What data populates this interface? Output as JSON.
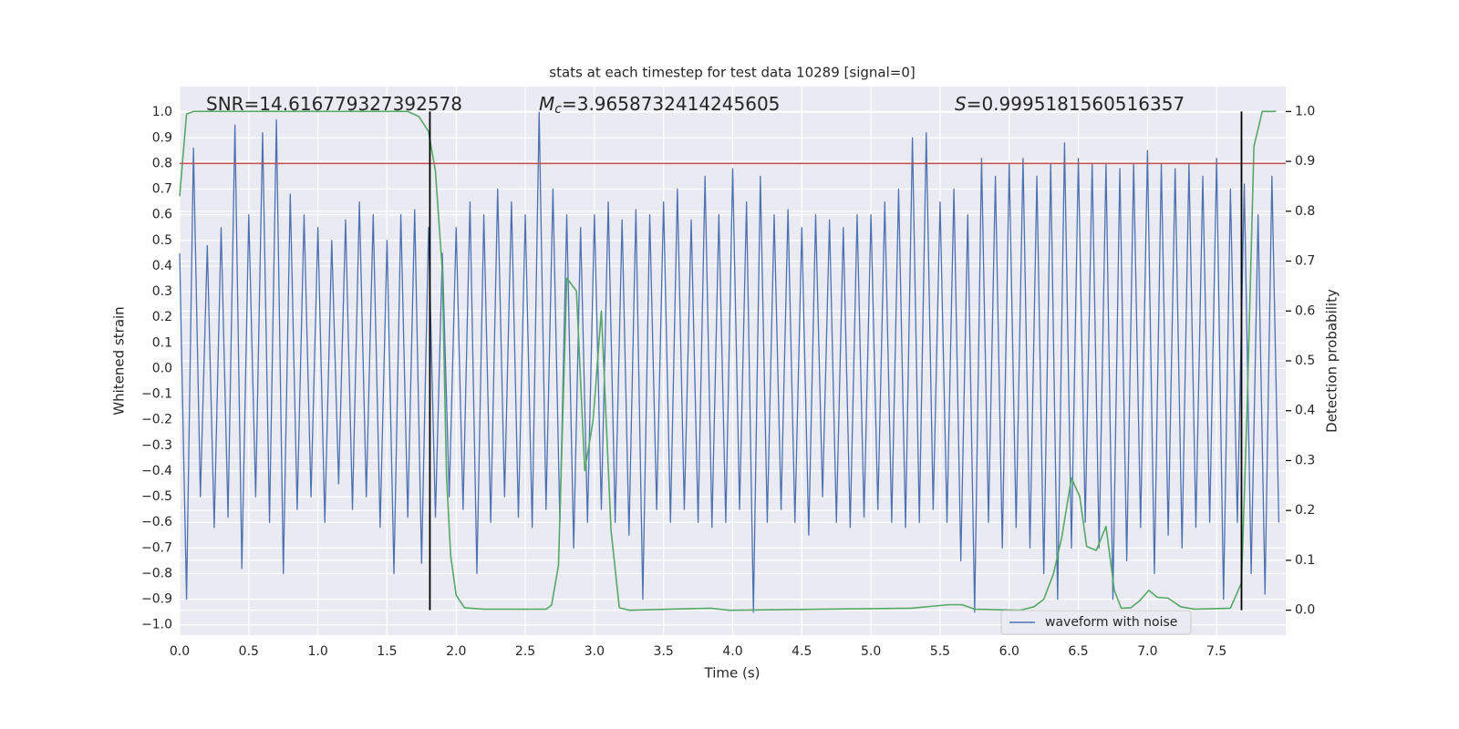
{
  "chart_data": {
    "type": "line",
    "title": "stats at each timestep for test data 10289 [signal=0]",
    "xlabel": "Time (s)",
    "ylabel": "Whitened strain",
    "y2label": "Detection probability",
    "annotations": [
      {
        "text": "SNR=14.616779327392578"
      },
      {
        "symbol": "M",
        "subscript": "c",
        "text": "=3.9658732414245605"
      },
      {
        "symbol": "S",
        "text": "=0.9995181560516357"
      }
    ],
    "xlim": [
      0,
      8
    ],
    "ylim": [
      -1.04,
      1.1
    ],
    "y2lim": [
      -0.05,
      1.05
    ],
    "xticks": [
      {
        "value": 0,
        "label": "0.0"
      },
      0.5,
      {
        "value": 1,
        "label": "1.0"
      },
      1.5,
      {
        "value": 2,
        "label": "2.0"
      },
      2.5,
      {
        "value": 3,
        "label": "3.0"
      },
      3.5,
      {
        "value": 4,
        "label": "4.0"
      },
      4.5,
      {
        "value": 5,
        "label": "5.0"
      },
      5.5,
      {
        "value": 6,
        "label": "6.0"
      },
      6.5,
      {
        "value": 7,
        "label": "7.0"
      },
      7.5
    ],
    "yticks": [
      {
        "value": -1,
        "label": "−1.0"
      },
      {
        "value": -0.9,
        "label": "−0.9"
      },
      {
        "value": -0.8,
        "label": "−0.8"
      },
      {
        "value": -0.7,
        "label": "−0.7"
      },
      {
        "value": -0.6,
        "label": "−0.6"
      },
      {
        "value": -0.5,
        "label": "−0.5"
      },
      {
        "value": -0.4,
        "label": "−0.4"
      },
      {
        "value": -0.3,
        "label": "−0.3"
      },
      {
        "value": -0.2,
        "label": "−0.2"
      },
      {
        "value": -0.1,
        "label": "−0.1"
      },
      {
        "value": 0,
        "label": "0.0"
      },
      0.1,
      0.2,
      0.3,
      0.4,
      0.5,
      0.6,
      0.7,
      0.8,
      0.9,
      {
        "value": 1,
        "label": "1.0"
      }
    ],
    "y2ticks": [
      {
        "value": 0,
        "label": "0.0"
      },
      0.1,
      0.2,
      0.3,
      0.4,
      0.5,
      0.6,
      0.7,
      0.8,
      0.9,
      {
        "value": 1,
        "label": "1.0"
      }
    ],
    "grid": true,
    "legend": "lower right",
    "hline": {
      "y": 0.8,
      "color": "#c44e52"
    },
    "vlines": {
      "x": [
        1.81,
        7.68
      ],
      "span": [
        0,
        1
      ],
      "axis": "y2",
      "color": "#000000"
    },
    "series": [
      {
        "name": "waveform with noise",
        "color": "#4c72b0",
        "x": [
          0,
          0.05,
          0.1,
          0.15,
          0.2,
          0.25,
          0.3,
          0.35,
          0.4,
          0.45,
          0.5,
          0.55,
          0.6,
          0.65,
          0.7,
          0.75,
          0.8,
          0.85,
          0.9,
          0.95,
          1,
          1.05,
          1.1,
          1.15,
          1.2,
          1.25,
          1.3,
          1.35,
          1.4,
          1.45,
          1.5,
          1.55,
          1.6,
          1.65,
          1.7,
          1.75,
          1.8,
          1.85,
          1.9,
          1.95,
          2,
          2.05,
          2.1,
          2.15,
          2.2,
          2.25,
          2.3,
          2.35,
          2.4,
          2.45,
          2.5,
          2.55,
          2.6,
          2.65,
          2.7,
          2.75,
          2.8,
          2.85,
          2.9,
          2.95,
          3,
          3.05,
          3.1,
          3.15,
          3.2,
          3.25,
          3.3,
          3.35,
          3.4,
          3.45,
          3.5,
          3.55,
          3.6,
          3.65,
          3.7,
          3.75,
          3.8,
          3.85,
          3.9,
          3.95,
          4,
          4.05,
          4.1,
          4.15,
          4.2,
          4.25,
          4.3,
          4.35,
          4.4,
          4.45,
          4.5,
          4.55,
          4.6,
          4.65,
          4.7,
          4.75,
          4.8,
          4.85,
          4.9,
          4.95,
          5,
          5.05,
          5.1,
          5.15,
          5.2,
          5.25,
          5.3,
          5.35,
          5.4,
          5.45,
          5.5,
          5.55,
          5.6,
          5.65,
          5.7,
          5.75,
          5.8,
          5.85,
          5.9,
          5.95,
          6,
          6.05,
          6.1,
          6.15,
          6.2,
          6.25,
          6.3,
          6.35,
          6.4,
          6.45,
          6.5,
          6.55,
          6.6,
          6.65,
          6.7,
          6.75,
          6.8,
          6.85,
          6.9,
          6.95,
          7,
          7.05,
          7.1,
          7.15,
          7.2,
          7.25,
          7.3,
          7.35,
          7.4,
          7.45,
          7.5,
          7.55,
          7.6,
          7.65,
          7.7,
          7.75,
          7.8,
          7.85,
          7.9,
          7.95
        ],
        "values": [
          0.45,
          -0.9,
          0.86,
          -0.5,
          0.48,
          -0.62,
          0.55,
          -0.58,
          0.95,
          -0.78,
          0.6,
          -0.5,
          0.92,
          -0.6,
          0.97,
          -0.8,
          0.68,
          -0.55,
          0.6,
          -0.5,
          0.55,
          -0.6,
          0.5,
          -0.45,
          0.58,
          -0.55,
          0.65,
          -0.5,
          0.6,
          -0.62,
          0.5,
          -0.8,
          0.6,
          -0.58,
          0.62,
          -0.76,
          0.55,
          -0.58,
          0.45,
          -0.5,
          0.55,
          -0.55,
          0.65,
          -0.8,
          0.6,
          -0.6,
          0.7,
          -0.5,
          0.65,
          -0.58,
          0.6,
          -0.62,
          1.0,
          -0.55,
          0.7,
          -0.6,
          0.6,
          -0.7,
          0.55,
          -0.6,
          0.6,
          -0.55,
          0.65,
          -0.6,
          0.58,
          -0.65,
          0.62,
          -0.9,
          0.6,
          -0.55,
          0.65,
          -0.6,
          0.7,
          -0.55,
          0.58,
          -0.6,
          0.75,
          -0.62,
          0.6,
          -0.6,
          0.78,
          -0.55,
          0.65,
          -0.95,
          0.75,
          -0.6,
          0.6,
          -0.55,
          0.62,
          -0.6,
          0.55,
          -0.65,
          0.6,
          -0.5,
          0.58,
          -0.6,
          0.55,
          -0.62,
          0.6,
          -0.58,
          0.6,
          -0.55,
          0.65,
          -0.6,
          0.7,
          -0.62,
          0.9,
          -0.6,
          0.92,
          -0.55,
          0.65,
          -0.6,
          0.7,
          -0.75,
          0.6,
          -0.95,
          0.82,
          -0.6,
          0.75,
          -0.7,
          0.8,
          -0.62,
          0.82,
          -0.7,
          0.75,
          -0.8,
          0.8,
          -0.9,
          0.88,
          -0.7,
          0.82,
          -0.6,
          0.8,
          -0.7,
          0.8,
          -0.9,
          0.78,
          -0.75,
          0.8,
          -0.62,
          0.85,
          -0.8,
          0.8,
          -0.65,
          0.78,
          -0.7,
          0.8,
          -0.62,
          0.75,
          -0.6,
          0.82,
          -0.9,
          0.7,
          -0.6,
          0.72,
          -0.8,
          0.6,
          -0.88,
          0.75,
          -0.6
        ]
      },
      {
        "color": "#55a868",
        "axis": "y2",
        "x": [
          0,
          0.05,
          0.1,
          1.65,
          1.73,
          1.8,
          1.85,
          1.9,
          1.93,
          1.96,
          2.0,
          2.06,
          2.2,
          2.65,
          2.69,
          2.74,
          2.8,
          2.87,
          2.93,
          2.99,
          3.05,
          3.12,
          3.18,
          3.25,
          3.84,
          3.97,
          5.29,
          5.56,
          5.66,
          5.75,
          6.08,
          6.18,
          6.25,
          6.32,
          6.38,
          6.45,
          6.51,
          6.56,
          6.63,
          6.7,
          6.76,
          6.81,
          6.88,
          6.94,
          7.01,
          7.07,
          7.15,
          7.24,
          7.34,
          7.6,
          7.68,
          7.72,
          7.77,
          7.83,
          7.93
        ],
        "values": [
          0.83,
          0.995,
          1.0,
          1.0,
          0.99,
          0.96,
          0.88,
          0.68,
          0.27,
          0.11,
          0.03,
          0.005,
          0.002,
          0.002,
          0.01,
          0.09,
          0.666,
          0.64,
          0.28,
          0.38,
          0.6,
          0.16,
          0.005,
          0,
          0.004,
          0,
          0.004,
          0.011,
          0.011,
          0.002,
          0,
          0.007,
          0.022,
          0.073,
          0.146,
          0.265,
          0.228,
          0.128,
          0.12,
          0.168,
          0.04,
          0.004,
          0.005,
          0.018,
          0.04,
          0.026,
          0.024,
          0.007,
          0.002,
          0.004,
          0.055,
          0.4,
          0.93,
          1.0,
          1.0
        ]
      }
    ]
  }
}
